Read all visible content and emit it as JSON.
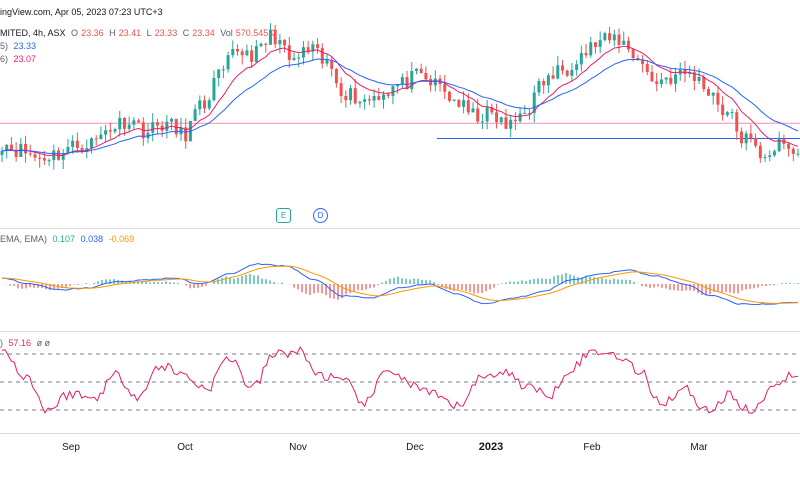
{
  "header": {
    "source": "ingView.com, Apr 05, 2023 07:23 UTC+3",
    "symbol": "MITED, 4h, ASX",
    "ohlc": [
      {
        "k": "O",
        "v": "23.36"
      },
      {
        "k": "H",
        "v": "23.41"
      },
      {
        "k": "L",
        "v": "23.33"
      },
      {
        "k": "C",
        "v": "23.34"
      },
      {
        "k": "Vol",
        "v": "570.545K"
      }
    ],
    "ma1_label": "5)",
    "ma1_value": "23.33",
    "ma2_label": "6)",
    "ma2_value": "23.07"
  },
  "macd_legend": {
    "label": "EMA, EMA)",
    "hist": "0.107",
    "macd": "0.038",
    "signal": "-0.069"
  },
  "rsi_legend": {
    "label": ")",
    "value": "57.16",
    "extra": "ø ø"
  },
  "events": {
    "earnings": "E",
    "dividend": "D"
  },
  "time_axis": {
    "ticks": [
      {
        "label": "Sep",
        "bold": false
      },
      {
        "label": "Oct",
        "bold": false
      },
      {
        "label": "Nov",
        "bold": false
      },
      {
        "label": "Dec",
        "bold": false
      },
      {
        "label": "2023",
        "bold": true
      },
      {
        "label": "Feb",
        "bold": false
      },
      {
        "label": "Mar",
        "bold": false
      }
    ]
  },
  "colors": {
    "up": "#26a69a",
    "down": "#ef5350",
    "ema_fast": "#e91e63",
    "ema_slow": "#2962ff",
    "macd": "#2962ff",
    "signal": "#ff9800",
    "rsi": "#e91e63",
    "support": "#2962ff",
    "prior_close": "#f48fb1"
  },
  "chart_data": [
    {
      "type": "candlestick",
      "title": "",
      "x": [
        "Sep",
        "Oct",
        "Nov",
        "Dec",
        "2023",
        "Feb",
        "Mar"
      ],
      "close_path": [
        22.9,
        22.7,
        22.5,
        22.6,
        22.8,
        22.9,
        23.3,
        23.5,
        23.2,
        23.4,
        23.1,
        23.8,
        24.6,
        25.3,
        25.2,
        25.7,
        25.0,
        25.3,
        24.9,
        24.2,
        24.0,
        24.2,
        24.4,
        24.6,
        24.4,
        24.0,
        23.6,
        23.6,
        23.3,
        23.8,
        24.5,
        24.8,
        25.2,
        25.5,
        25.6,
        25.2,
        24.5,
        24.6,
        24.7,
        24.3,
        23.7,
        23.0,
        22.6,
        22.8,
        22.6
      ],
      "series": [
        {
          "name": "",
          "type": "ema",
          "last": 23.33
        },
        {
          "name": "",
          "type": "ema",
          "last": 23.07
        }
      ],
      "reference_lines": [
        23.0,
        23.4
      ]
    },
    {
      "type": "macd",
      "macd_path": [
        0.15,
        0.0,
        -0.15,
        -0.1,
        0.05,
        0.1,
        0.15,
        0.0,
        0.25,
        0.5,
        0.45,
        0.1,
        -0.3,
        -0.35,
        -0.1,
        0.0,
        -0.25,
        -0.5,
        -0.35,
        -0.2,
        0.1,
        0.25,
        0.35,
        0.2,
        0.0,
        -0.3,
        -0.5,
        -0.5,
        -0.45
      ],
      "last": {
        "histogram": 0.107,
        "macd": 0.038,
        "signal": -0.069
      }
    },
    {
      "type": "rsi",
      "levels": [
        70,
        50,
        30
      ],
      "ylim": [
        20,
        80
      ],
      "rsi_path": [
        72,
        55,
        30,
        42,
        38,
        55,
        40,
        62,
        55,
        45,
        68,
        45,
        70,
        72,
        55,
        50,
        35,
        60,
        48,
        40,
        32,
        52,
        58,
        48,
        40,
        60,
        72,
        70,
        58,
        35,
        45,
        30,
        40,
        28,
        50,
        57
      ],
      "last": 57.16
    }
  ]
}
